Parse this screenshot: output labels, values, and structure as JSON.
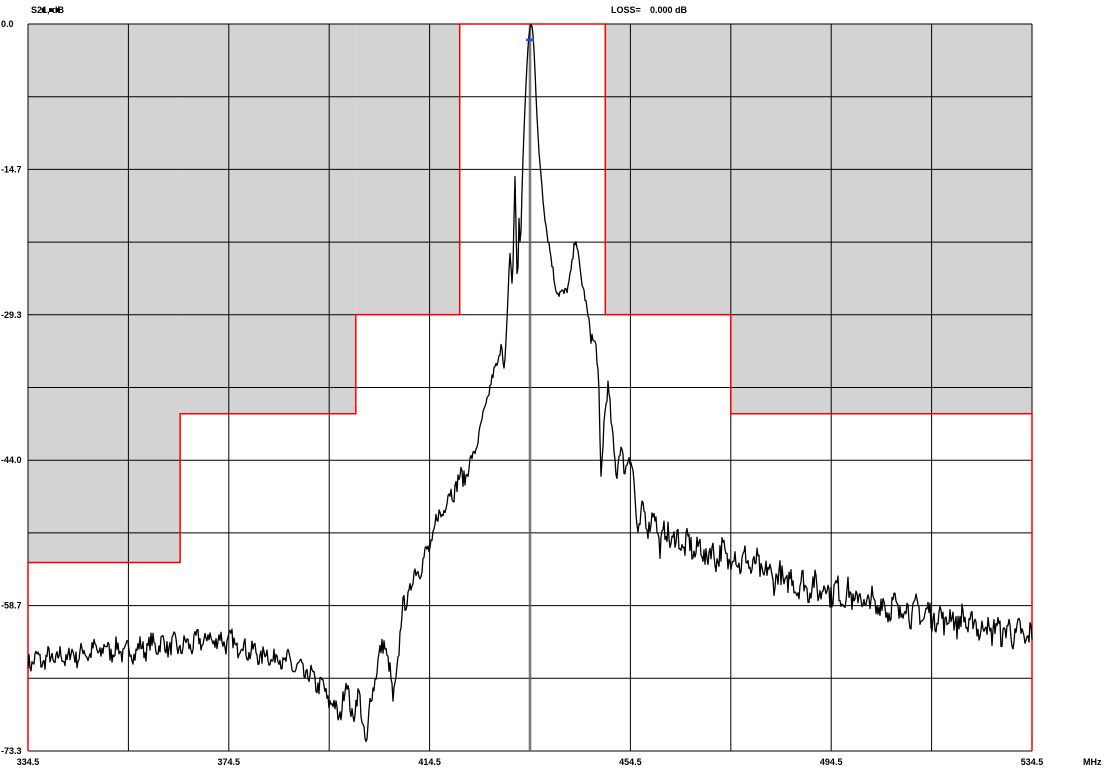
{
  "header": {
    "title_cut": "...",
    "ylabel": "S21, dB",
    "loss_label": "LOSS=",
    "loss_value": "0.000 dB"
  },
  "colors": {
    "background": "#ffffff",
    "reject_fill": "#d3d3d3",
    "grid": "#000000",
    "mask": "#ff0000",
    "trace": "#000000",
    "marker": "#3344ff",
    "center_line": "#777777"
  },
  "chart_data": {
    "type": "line",
    "ylabel": "S21, dB",
    "xunit": "MHz",
    "xlim": [
      334.5,
      534.5
    ],
    "ylim": [
      -73.3,
      0.0
    ],
    "x_ticks": [
      "334.5",
      "374.5",
      "414.5",
      "454.5",
      "494.5",
      "534.5"
    ],
    "y_ticks": [
      "0.0",
      "-14.7",
      "-29.3",
      "-44.0",
      "-58.7",
      "-73.3"
    ],
    "grid": true,
    "center_freq": 434.5,
    "loss": "0.000 dB",
    "mask": {
      "color": "#ff0000",
      "points": [
        [
          334.5,
          -73.3
        ],
        [
          334.5,
          -54.3
        ],
        [
          364.8,
          -54.3
        ],
        [
          364.8,
          -39.3
        ],
        [
          399.8,
          -39.3
        ],
        [
          399.8,
          -29.3
        ],
        [
          420.5,
          -29.3
        ],
        [
          420.5,
          0.0
        ],
        [
          449.5,
          0.0
        ],
        [
          449.5,
          -29.3
        ],
        [
          474.5,
          -29.3
        ],
        [
          474.5,
          -39.3
        ],
        [
          534.5,
          -39.3
        ],
        [
          534.5,
          -73.3
        ]
      ],
      "reject_regions": [
        {
          "x": [
            334.5,
            364.8
          ],
          "y_low": -54.3
        },
        {
          "x": [
            364.8,
            399.8
          ],
          "y_low": -39.3
        },
        {
          "x": [
            399.8,
            420.5
          ],
          "y_low": -29.3
        },
        {
          "x": [
            449.5,
            474.5
          ],
          "y_low": -29.3
        },
        {
          "x": [
            474.5,
            534.5
          ],
          "y_low": -39.3
        }
      ]
    },
    "series": [
      {
        "values": [
          [
            334.5,
            -64.2
          ],
          [
            340,
            -64.0
          ],
          [
            345,
            -63.5
          ],
          [
            350,
            -63.0
          ],
          [
            355,
            -63.3
          ],
          [
            360,
            -62.5
          ],
          [
            365,
            -62.8
          ],
          [
            370,
            -62.0
          ],
          [
            375,
            -62.3
          ],
          [
            380,
            -63.5
          ],
          [
            385,
            -64.0
          ],
          [
            390,
            -65.5
          ],
          [
            393,
            -66.8
          ],
          [
            395,
            -68.5
          ],
          [
            396.5,
            -69.8
          ],
          [
            398,
            -66.5
          ],
          [
            399.3,
            -70.0
          ],
          [
            400.5,
            -67.5
          ],
          [
            401.5,
            -71.5
          ],
          [
            402,
            -73.2
          ],
          [
            402.7,
            -68.0
          ],
          [
            403.5,
            -66.0
          ],
          [
            404.5,
            -64.0
          ],
          [
            405.5,
            -62.0
          ],
          [
            406.5,
            -65.0
          ],
          [
            407.2,
            -68.5
          ],
          [
            408.2,
            -64.0
          ],
          [
            409,
            -59.5
          ],
          [
            410.5,
            -57.0
          ],
          [
            412,
            -55.0
          ],
          [
            413.5,
            -54.0
          ],
          [
            415,
            -52.0
          ],
          [
            416,
            -50.0
          ],
          [
            417.5,
            -48.5
          ],
          [
            419,
            -47.0
          ],
          [
            420.5,
            -46.0
          ],
          [
            421.5,
            -45.5
          ],
          [
            422.3,
            -44.5
          ],
          [
            423.3,
            -43.5
          ],
          [
            424.5,
            -41.0
          ],
          [
            425.5,
            -39.0
          ],
          [
            426.5,
            -36.5
          ],
          [
            427.5,
            -35.0
          ],
          [
            428.2,
            -34.0
          ],
          [
            428.8,
            -31.5
          ],
          [
            429.4,
            -35.5
          ],
          [
            430,
            -29.5
          ],
          [
            430.5,
            -22.5
          ],
          [
            431,
            -26.5
          ],
          [
            431.5,
            -15.5
          ],
          [
            432,
            -27.5
          ],
          [
            432.3,
            -19.5
          ],
          [
            432.6,
            -23.0
          ],
          [
            433,
            -15.0
          ],
          [
            433.4,
            -9.5
          ],
          [
            433.8,
            -5.0
          ],
          [
            434.2,
            -1.5
          ],
          [
            434.6,
            0.0
          ],
          [
            435,
            -0.3
          ],
          [
            435.4,
            -3.5
          ],
          [
            435.8,
            -8.5
          ],
          [
            436.3,
            -13.0
          ],
          [
            437,
            -17.0
          ],
          [
            437.8,
            -20.5
          ],
          [
            438.6,
            -23.5
          ],
          [
            439.4,
            -26.0
          ],
          [
            440.2,
            -27.0
          ],
          [
            441.2,
            -27.5
          ],
          [
            442.2,
            -26.0
          ],
          [
            443,
            -24.0
          ],
          [
            443.6,
            -21.5
          ],
          [
            444.2,
            -23.5
          ],
          [
            445,
            -26.5
          ],
          [
            446,
            -29.5
          ],
          [
            447,
            -31.5
          ],
          [
            447.8,
            -33.5
          ],
          [
            448.2,
            -37.0
          ],
          [
            448.6,
            -46.0
          ],
          [
            449.2,
            -40.0
          ],
          [
            450,
            -37.0
          ],
          [
            451,
            -41.5
          ],
          [
            451.8,
            -45.5
          ],
          [
            452.5,
            -43.0
          ],
          [
            453.4,
            -44.5
          ],
          [
            454.2,
            -43.5
          ],
          [
            455.2,
            -46.0
          ],
          [
            456,
            -51.5
          ],
          [
            457,
            -49.0
          ],
          [
            458,
            -50.5
          ],
          [
            459.2,
            -49.5
          ],
          [
            460.3,
            -52.0
          ],
          [
            462,
            -51.5
          ],
          [
            465,
            -52.5
          ],
          [
            468,
            -53.0
          ],
          [
            470,
            -53.5
          ],
          [
            473,
            -53.5
          ],
          [
            476,
            -54.0
          ],
          [
            479,
            -54.5
          ],
          [
            482,
            -55.5
          ],
          [
            485,
            -56.0
          ],
          [
            488,
            -56.5
          ],
          [
            491,
            -56.8
          ],
          [
            494,
            -57.0
          ],
          [
            497,
            -57.5
          ],
          [
            500,
            -58.0
          ],
          [
            503,
            -58.5
          ],
          [
            506,
            -58.8
          ],
          [
            509,
            -59.0
          ],
          [
            512,
            -59.3
          ],
          [
            515,
            -59.8
          ],
          [
            518,
            -60.0
          ],
          [
            521,
            -60.2
          ],
          [
            524,
            -60.8
          ],
          [
            527,
            -61.0
          ],
          [
            530,
            -61.3
          ],
          [
            532,
            -61.5
          ],
          [
            534.5,
            -62.0
          ]
        ]
      }
    ]
  }
}
